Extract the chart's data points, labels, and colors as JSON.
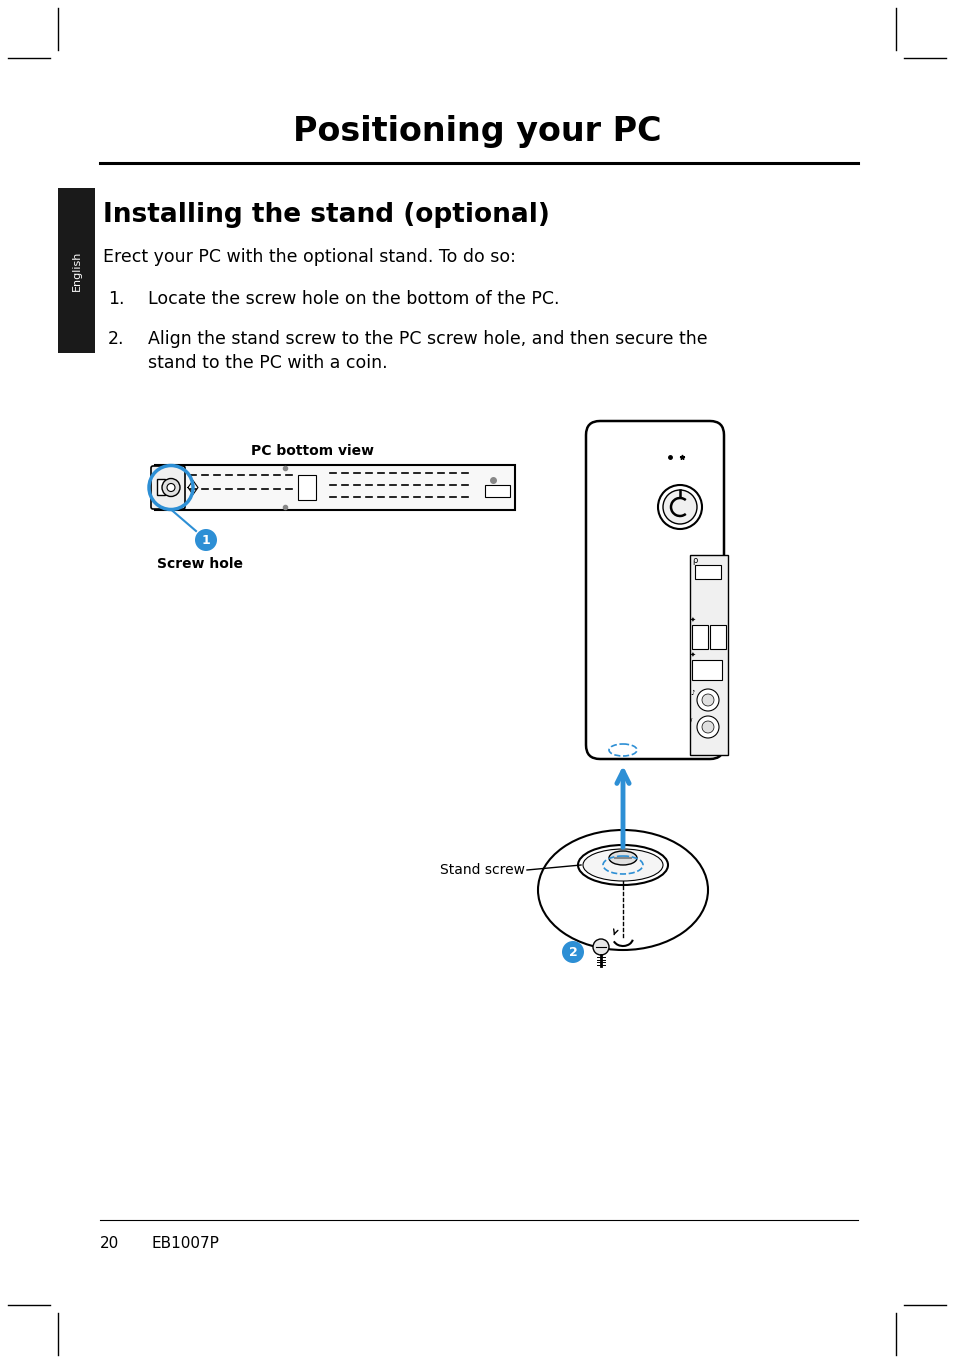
{
  "title": "Positioning your PC",
  "section_title": "Installing the stand (optional)",
  "intro_text": "Erect your PC with the optional stand. To do so:",
  "step1": "Locate the screw hole on the bottom of the PC.",
  "step2_line1": "Align the stand screw to the PC screw hole, and then secure the",
  "step2_line2": "stand to the PC with a coin.",
  "label_pc_bottom": "PC bottom view",
  "label_screw_hole": "Screw hole",
  "label_stand_screw": "Stand screw",
  "sidebar_text": "English",
  "footer_page": "20",
  "footer_model": "EB1007P",
  "bg_color": "#ffffff",
  "black": "#000000",
  "blue": "#2d8fd5",
  "blue_light": "#4aabf0",
  "sidebar_bg": "#1a1a1a"
}
